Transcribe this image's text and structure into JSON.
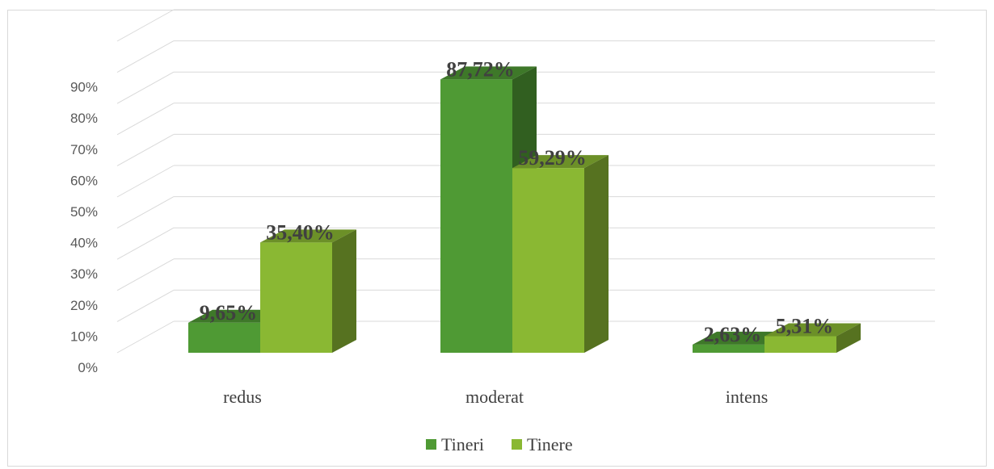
{
  "chart_data": {
    "type": "bar",
    "title": "",
    "xlabel": "",
    "ylabel": "",
    "categories": [
      "redus",
      "moderat",
      "intens"
    ],
    "series": [
      {
        "name": "Tineri",
        "values": [
          9.65,
          87.72,
          2.63
        ],
        "labels": [
          "9,65%",
          "87,72%",
          "2,63%"
        ],
        "color": "#4f9a34"
      },
      {
        "name": "Tinere",
        "values": [
          35.4,
          59.29,
          5.31
        ],
        "labels": [
          "35,40%",
          "59,29%",
          "5,31%"
        ],
        "color": "#8ab833"
      }
    ],
    "ylim": [
      0,
      100
    ],
    "yticks": [
      "0%",
      "10%",
      "20%",
      "30%",
      "40%",
      "50%",
      "60%",
      "70%",
      "80%",
      "90%"
    ],
    "grid": true,
    "legend": "bottom",
    "style": "3d-clustered-column"
  }
}
